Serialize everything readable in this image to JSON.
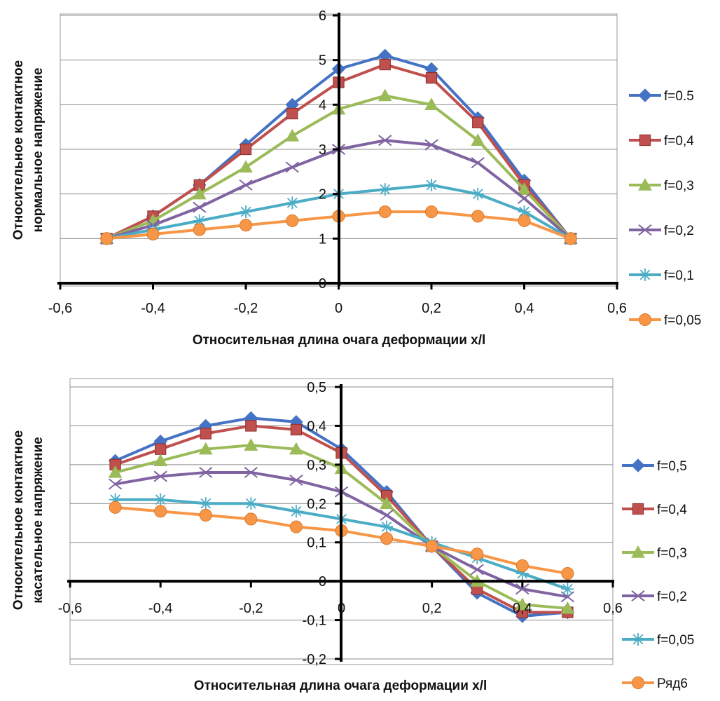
{
  "chart_data": [
    {
      "type": "line",
      "xlabel": "Относительная длина очага деформации x/l",
      "ylabel_lines": [
        "Относительное контактное",
        "нормальное напряжение"
      ],
      "xlim": [
        -0.6,
        0.6
      ],
      "ylim": [
        0,
        6
      ],
      "x_ticks": [
        -0.6,
        -0.4,
        -0.2,
        0,
        0.2,
        0.4,
        0.6
      ],
      "x_tick_labels": [
        "-0,6",
        "-0,4",
        "-0,2",
        "0",
        "0,2",
        "0,4",
        "0,6"
      ],
      "y_ticks": [
        0,
        1,
        2,
        3,
        4,
        5,
        6
      ],
      "y_tick_labels": [
        "0",
        "1",
        "2",
        "3",
        "4",
        "5",
        "6"
      ],
      "grid": "horizontal",
      "legend_position": "right",
      "x": [
        -0.5,
        -0.4,
        -0.3,
        -0.2,
        -0.1,
        0,
        0.1,
        0.2,
        0.3,
        0.4,
        0.5
      ],
      "series": [
        {
          "name": "f=0.5",
          "color": "#4472C4",
          "marker": "diamond",
          "values": [
            1.0,
            1.5,
            2.2,
            3.1,
            4.0,
            4.8,
            5.1,
            4.8,
            3.7,
            2.3,
            1.0
          ]
        },
        {
          "name": "f=0,4",
          "color": "#C0504D",
          "marker": "square",
          "values": [
            1.0,
            1.5,
            2.2,
            3.0,
            3.8,
            4.5,
            4.9,
            4.6,
            3.6,
            2.2,
            1.0
          ]
        },
        {
          "name": "f=0,3",
          "color": "#9BBB59",
          "marker": "triangle",
          "values": [
            1.0,
            1.4,
            2.0,
            2.6,
            3.3,
            3.9,
            4.2,
            4.0,
            3.2,
            2.1,
            1.0
          ]
        },
        {
          "name": "f=0,2",
          "color": "#8064A2",
          "marker": "x",
          "values": [
            1.0,
            1.3,
            1.7,
            2.2,
            2.6,
            3.0,
            3.2,
            3.1,
            2.7,
            1.9,
            1.0
          ]
        },
        {
          "name": "f=0,1",
          "color": "#4BACC6",
          "marker": "star",
          "values": [
            1.0,
            1.2,
            1.4,
            1.6,
            1.8,
            2.0,
            2.1,
            2.2,
            2.0,
            1.6,
            1.0
          ]
        },
        {
          "name": "f=0,05",
          "color": "#F79646",
          "marker": "circle",
          "values": [
            1.0,
            1.1,
            1.2,
            1.3,
            1.4,
            1.5,
            1.6,
            1.6,
            1.5,
            1.4,
            1.0
          ]
        }
      ]
    },
    {
      "type": "line",
      "xlabel": "Относительная длина очага деформации x/l",
      "ylabel_lines": [
        "Относительное контактное",
        "касательное  напряжение"
      ],
      "xlim": [
        -0.6,
        0.6
      ],
      "ylim": [
        -0.2,
        0.5
      ],
      "x_ticks": [
        -0.6,
        -0.4,
        -0.2,
        0,
        0.2,
        0.4,
        0.6
      ],
      "x_tick_labels": [
        "-0,6",
        "-0,4",
        "-0,2",
        "0",
        "0,2",
        "0,4",
        "0,6"
      ],
      "y_ticks": [
        -0.2,
        -0.1,
        0,
        0.1,
        0.2,
        0.3,
        0.4,
        0.5
      ],
      "y_tick_labels": [
        "-0,2",
        "-0,1",
        "0",
        "0,1",
        "0,2",
        "0,3",
        "0,4",
        "0,5"
      ],
      "grid": "horizontal",
      "legend_position": "right",
      "x": [
        -0.5,
        -0.4,
        -0.3,
        -0.2,
        -0.1,
        0,
        0.1,
        0.2,
        0.3,
        0.4,
        0.5
      ],
      "series": [
        {
          "name": "f=0,5",
          "color": "#4472C4",
          "marker": "diamond",
          "values": [
            0.31,
            0.36,
            0.4,
            0.42,
            0.41,
            0.34,
            0.23,
            0.09,
            -0.03,
            -0.09,
            -0.08
          ]
        },
        {
          "name": "f=0,4",
          "color": "#C0504D",
          "marker": "square",
          "values": [
            0.3,
            0.34,
            0.38,
            0.4,
            0.39,
            0.33,
            0.22,
            0.09,
            -0.02,
            -0.08,
            -0.08
          ]
        },
        {
          "name": "f=0,3",
          "color": "#9BBB59",
          "marker": "triangle",
          "values": [
            0.28,
            0.31,
            0.34,
            0.35,
            0.34,
            0.29,
            0.2,
            0.09,
            0.0,
            -0.06,
            -0.07
          ]
        },
        {
          "name": "f=0,2",
          "color": "#8064A2",
          "marker": "x",
          "values": [
            0.25,
            0.27,
            0.28,
            0.28,
            0.26,
            0.23,
            0.17,
            0.09,
            0.03,
            -0.02,
            -0.04
          ]
        },
        {
          "name": "f=0,05",
          "color": "#4BACC6",
          "marker": "star",
          "values": [
            0.21,
            0.21,
            0.2,
            0.2,
            0.18,
            0.16,
            0.14,
            0.1,
            0.06,
            0.02,
            -0.02
          ]
        },
        {
          "name": "Ряд6",
          "color": "#F79646",
          "marker": "circle",
          "values": [
            0.19,
            0.18,
            0.17,
            0.16,
            0.14,
            0.13,
            0.11,
            0.09,
            0.07,
            0.04,
            0.02
          ]
        }
      ]
    }
  ]
}
